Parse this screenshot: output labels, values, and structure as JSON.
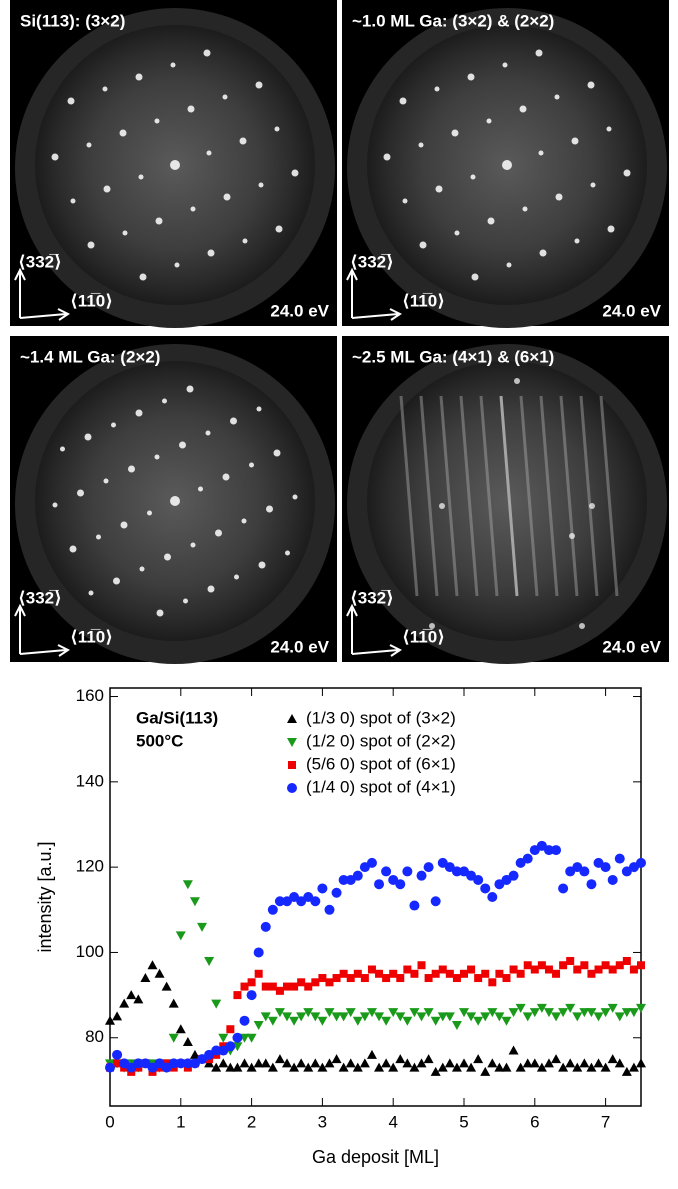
{
  "panels": [
    {
      "title": "Si(113): (3×2)",
      "energy": "24.0 eV",
      "axis_v": "⟨332̅⟩",
      "axis_h": "⟨11̅0⟩"
    },
    {
      "title": "~1.0 ML Ga: (3×2) & (2×2)",
      "energy": "24.0 eV",
      "axis_v": "⟨332̅⟩",
      "axis_h": "⟨11̅0⟩"
    },
    {
      "title": "~1.4 ML Ga: (2×2)",
      "energy": "24.0 eV",
      "axis_v": "⟨332̅⟩",
      "axis_h": "⟨11̅0⟩"
    },
    {
      "title": "~2.5 ML Ga: (4×1) & (6×1)",
      "energy": "24.0 eV",
      "axis_v": "⟨332̅⟩",
      "axis_h": "⟨11̅0⟩"
    }
  ],
  "chart_data": {
    "type": "scatter",
    "annotations": [
      "Ga/Si(113)",
      "500°C"
    ],
    "xlabel": "Ga deposit [ML]",
    "ylabel": "intensity [a.u.]",
    "xlim": [
      0,
      7.5
    ],
    "xticks": [
      0,
      1,
      2,
      3,
      4,
      5,
      6,
      7
    ],
    "ylim": [
      64,
      162
    ],
    "yticks": [
      80,
      100,
      120,
      140,
      160
    ],
    "x": [
      0,
      0.1,
      0.2,
      0.3,
      0.4,
      0.5,
      0.6,
      0.7,
      0.8,
      0.9,
      1,
      1.1,
      1.2,
      1.3,
      1.4,
      1.5,
      1.6,
      1.7,
      1.8,
      1.9,
      2,
      2.1,
      2.2,
      2.3,
      2.4,
      2.5,
      2.6,
      2.7,
      2.8,
      2.9,
      3,
      3.1,
      3.2,
      3.3,
      3.4,
      3.5,
      3.6,
      3.7,
      3.8,
      3.9,
      4,
      4.1,
      4.2,
      4.3,
      4.4,
      4.5,
      4.6,
      4.7,
      4.8,
      4.9,
      5,
      5.1,
      5.2,
      5.3,
      5.4,
      5.5,
      5.6,
      5.7,
      5.8,
      5.9,
      6,
      6.1,
      6.2,
      6.3,
      6.4,
      6.5,
      6.6,
      6.7,
      6.8,
      6.9,
      7,
      7.1,
      7.2,
      7.3,
      7.4,
      7.5
    ],
    "series": [
      {
        "name": "(1/3 0) spot of (3×2)",
        "color": "#000000",
        "marker": "triangle-up",
        "values": [
          84,
          85,
          88,
          90,
          89,
          94,
          97,
          95,
          92,
          88,
          82,
          79,
          76,
          75,
          74,
          73,
          74,
          73,
          73,
          74,
          73,
          74,
          74,
          73,
          75,
          74,
          73,
          74,
          73,
          74,
          73,
          74,
          75,
          73,
          74,
          73,
          74,
          76,
          73,
          74,
          73,
          75,
          74,
          73,
          74,
          75,
          72,
          73,
          74,
          73,
          74,
          73,
          75,
          72,
          74,
          73,
          73,
          77,
          73,
          74,
          74,
          73,
          74,
          75,
          73,
          74,
          73,
          74,
          73,
          74,
          73,
          75,
          74,
          72,
          73,
          74
        ]
      },
      {
        "name": "(1/2 0) spot of (2×2)",
        "color": "#1a9a1a",
        "marker": "triangle-down",
        "values": [
          74,
          74,
          73,
          74,
          73,
          74,
          74,
          73,
          74,
          80,
          104,
          116,
          112,
          106,
          98,
          88,
          80,
          77,
          78,
          80,
          80,
          83,
          85,
          84,
          86,
          85,
          84,
          85,
          86,
          85,
          84,
          86,
          85,
          85,
          86,
          84,
          85,
          86,
          85,
          84,
          86,
          85,
          84,
          86,
          85,
          86,
          84,
          85,
          85,
          83,
          86,
          85,
          84,
          85,
          86,
          85,
          84,
          86,
          87,
          85,
          86,
          87,
          86,
          85,
          86,
          87,
          85,
          86,
          86,
          85,
          86,
          87,
          85,
          86,
          86,
          87
        ]
      },
      {
        "name": "(5/6 0) spot of (6×1)",
        "color": "#ee0000",
        "marker": "square",
        "values": [
          73,
          74,
          73,
          72,
          73,
          74,
          72,
          73,
          74,
          73,
          74,
          73,
          74,
          75,
          75,
          76,
          78,
          82,
          90,
          92,
          93,
          95,
          92,
          92,
          91,
          92,
          92,
          93,
          92,
          93,
          94,
          93,
          94,
          95,
          94,
          95,
          94,
          96,
          95,
          94,
          95,
          94,
          96,
          95,
          97,
          94,
          95,
          96,
          95,
          94,
          95,
          96,
          94,
          95,
          93,
          95,
          94,
          96,
          95,
          97,
          96,
          97,
          96,
          95,
          97,
          98,
          96,
          97,
          95,
          96,
          97,
          96,
          97,
          98,
          96,
          97
        ]
      },
      {
        "name": "(1/4 0) spot of (4×1)",
        "color": "#1428ff",
        "marker": "circle",
        "values": [
          73,
          76,
          74,
          73,
          74,
          74,
          73,
          74,
          73,
          74,
          74,
          74,
          74,
          75,
          76,
          77,
          77,
          78,
          80,
          84,
          90,
          100,
          106,
          110,
          112,
          112,
          113,
          112,
          113,
          112,
          115,
          110,
          114,
          117,
          117,
          118,
          120,
          121,
          116,
          119,
          117,
          116,
          119,
          111,
          118,
          120,
          112,
          121,
          120,
          119,
          119,
          118,
          117,
          115,
          113,
          116,
          117,
          118,
          121,
          122,
          124,
          125,
          124,
          124,
          115,
          119,
          120,
          119,
          116,
          121,
          120,
          117,
          122,
          119,
          120,
          121
        ]
      }
    ]
  }
}
